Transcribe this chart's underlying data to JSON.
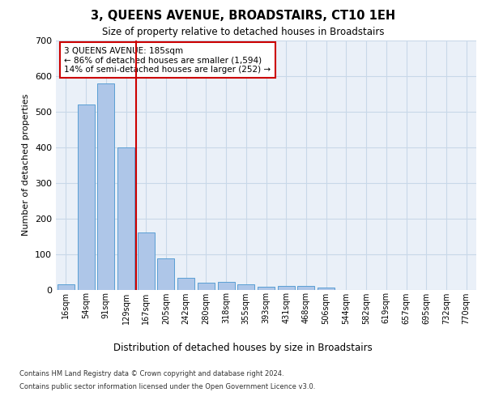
{
  "title": "3, QUEENS AVENUE, BROADSTAIRS, CT10 1EH",
  "subtitle": "Size of property relative to detached houses in Broadstairs",
  "xlabel": "Distribution of detached houses by size in Broadstairs",
  "ylabel": "Number of detached properties",
  "bar_color": "#aec6e8",
  "bar_edge_color": "#5a9fd4",
  "grid_color": "#c8d8e8",
  "background_color": "#eaf0f8",
  "property_line_color": "#cc0000",
  "annotation_box_color": "#cc0000",
  "categories": [
    "16sqm",
    "54sqm",
    "91sqm",
    "129sqm",
    "167sqm",
    "205sqm",
    "242sqm",
    "280sqm",
    "318sqm",
    "355sqm",
    "393sqm",
    "431sqm",
    "468sqm",
    "506sqm",
    "544sqm",
    "582sqm",
    "619sqm",
    "657sqm",
    "695sqm",
    "732sqm",
    "770sqm"
  ],
  "values": [
    14,
    520,
    580,
    400,
    160,
    88,
    33,
    20,
    22,
    14,
    8,
    11,
    11,
    5,
    0,
    0,
    0,
    0,
    0,
    0,
    0
  ],
  "ylim": [
    0,
    700
  ],
  "yticks": [
    0,
    100,
    200,
    300,
    400,
    500,
    600,
    700
  ],
  "property_size": "185sqm",
  "property_bar_index": 4,
  "annotation_text": "3 QUEENS AVENUE: 185sqm\n← 86% of detached houses are smaller (1,594)\n14% of semi-detached houses are larger (252) →",
  "footer_line1": "Contains HM Land Registry data © Crown copyright and database right 2024.",
  "footer_line2": "Contains public sector information licensed under the Open Government Licence v3.0."
}
